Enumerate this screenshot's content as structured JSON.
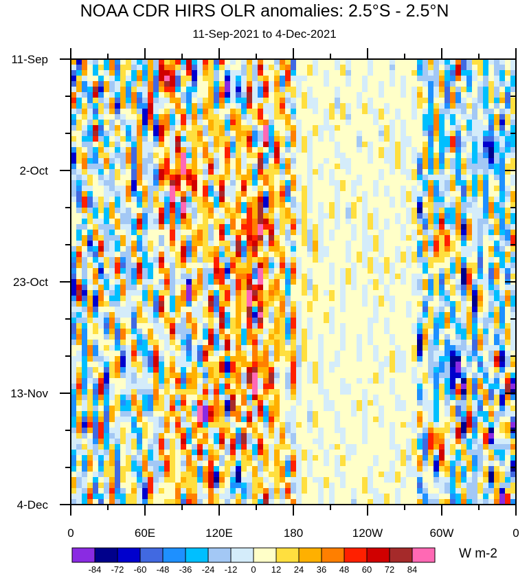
{
  "chart_data": {
    "type": "heatmap",
    "title": "NOAA CDR HIRS OLR anomalies: 2.5°S - 2.5°N",
    "subtitle": "11-Sep-2021 to 4-Dec-2021",
    "y_tick_labels": [
      "11-Sep",
      "2-Oct",
      "23-Oct",
      "13-Nov",
      "4-Dec"
    ],
    "y_tick_days": [
      0,
      21,
      42,
      63,
      84
    ],
    "y_range_days": [
      0,
      84
    ],
    "x_tick_labels": [
      "0",
      "60E",
      "120E",
      "180",
      "120W",
      "60W",
      "0"
    ],
    "x_tick_lons": [
      0,
      60,
      120,
      180,
      240,
      300,
      360
    ],
    "x_range_lon": [
      0,
      360
    ],
    "colorbar": {
      "levels": [
        "-84",
        "-72",
        "-60",
        "-48",
        "-36",
        "-24",
        "-12",
        "0",
        "12",
        "24",
        "36",
        "48",
        "60",
        "72",
        "84"
      ],
      "colors": [
        "#8a2be2",
        "#00008b",
        "#0000cd",
        "#4169e1",
        "#1e90ff",
        "#00bfff",
        "#a3c8f5",
        "#d4ecfa",
        "#ffffc8",
        "#ffdf3f",
        "#ffb000",
        "#ff7f00",
        "#ff2000",
        "#d00000",
        "#a52a2a",
        "#ff69b4"
      ],
      "units": "W m-2"
    },
    "anomaly_features": [
      {
        "lon": 80,
        "day": 3,
        "value": 45
      },
      {
        "lon": 95,
        "day": 5,
        "value": -50
      },
      {
        "lon": 130,
        "day": 5,
        "value": -60
      },
      {
        "lon": 88,
        "day": 22,
        "value": 60
      },
      {
        "lon": 150,
        "day": 32,
        "value": 60
      },
      {
        "lon": 148,
        "day": 44,
        "value": 55
      },
      {
        "lon": 150,
        "day": 60,
        "value": 55
      },
      {
        "lon": 95,
        "day": 43,
        "value": -40
      },
      {
        "lon": 95,
        "day": 55,
        "value": -45
      },
      {
        "lon": 135,
        "day": 80,
        "value": -55
      },
      {
        "lon": 310,
        "day": 58,
        "value": -60
      },
      {
        "lon": 340,
        "day": 17,
        "value": -50
      },
      {
        "lon": 300,
        "day": 35,
        "value": 50
      },
      {
        "lon": 300,
        "day": 72,
        "value": 45
      },
      {
        "lon": 200,
        "day": 45,
        "value": 6
      }
    ]
  }
}
